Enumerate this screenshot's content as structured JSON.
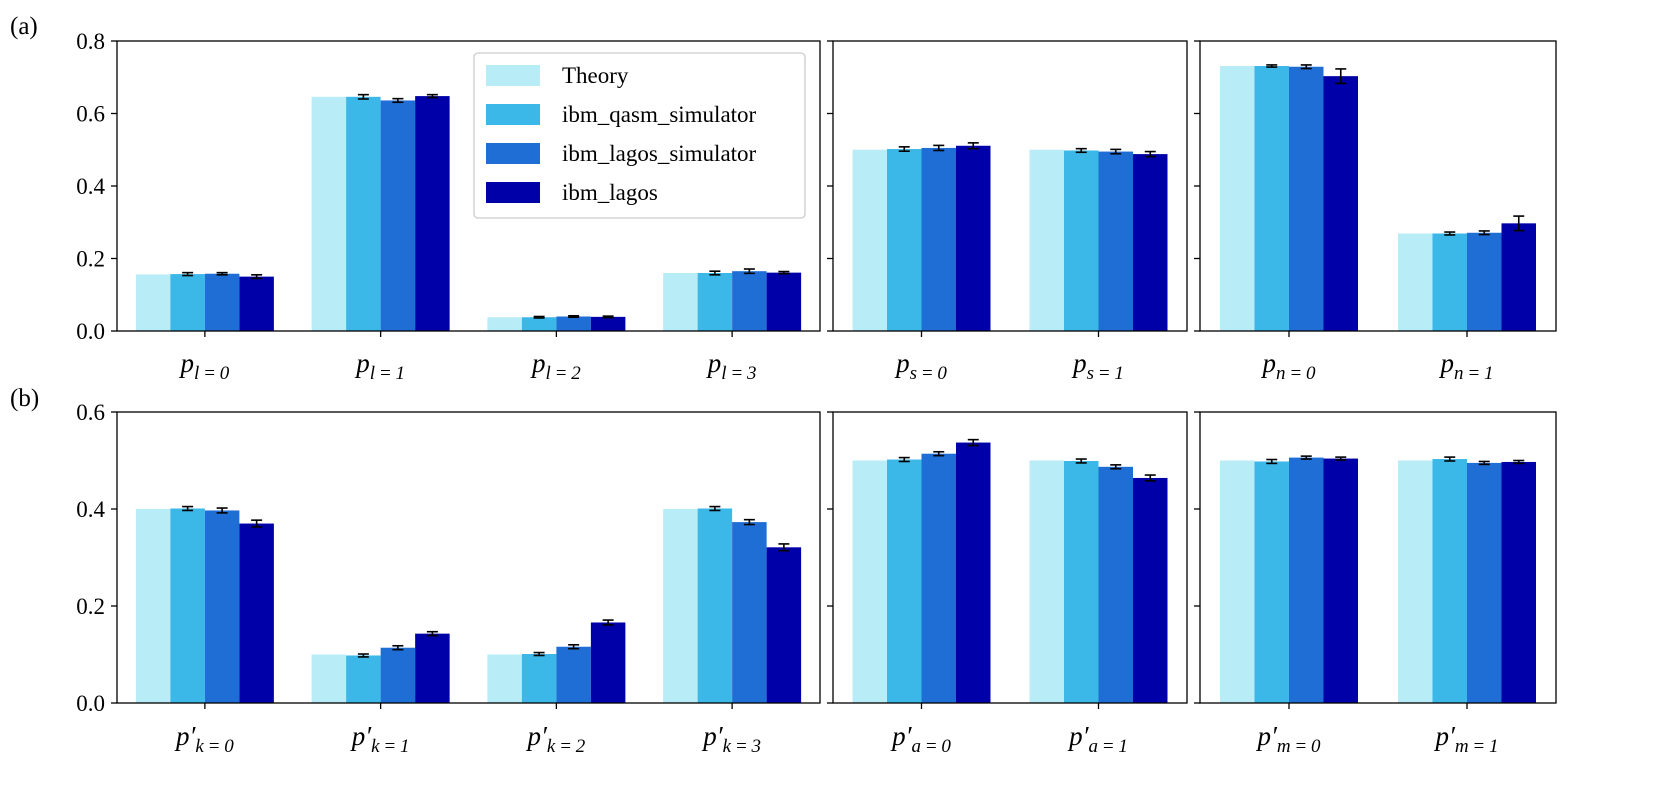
{
  "colors": {
    "series": [
      "#b8ecf7",
      "#3bb8e8",
      "#1f6ed6",
      "#0000a8"
    ],
    "error": "#000000",
    "axis": "#000000",
    "legend_border": "#cccccc"
  },
  "chart_data": {
    "type": "bar",
    "panel_labels": [
      "(a)",
      "(b)"
    ],
    "legend": {
      "placement": "top-center of first panel",
      "entries": [
        "Theory",
        "ibm_qasm_simulator",
        "ibm_lagos_simulator",
        "ibm_lagos"
      ]
    },
    "rows": [
      {
        "label": "(a)",
        "ylim": [
          0,
          0.8
        ],
        "yticks": [
          "0.0",
          "0.2",
          "0.4",
          "0.6",
          "0.8"
        ],
        "ytick_values": [
          0,
          0.2,
          0.4,
          0.6,
          0.8
        ],
        "subplots": [
          {
            "categories": [
              {
                "base": "p",
                "prime": "",
                "sub": "l = 0"
              },
              {
                "base": "p",
                "prime": "",
                "sub": "l = 1"
              },
              {
                "base": "p",
                "prime": "",
                "sub": "l = 2"
              },
              {
                "base": "p",
                "prime": "",
                "sub": "l = 3"
              }
            ],
            "series": [
              {
                "name": "Theory",
                "values": [
                  0.156,
                  0.646,
                  0.038,
                  0.16
                ],
                "errors": [
                  0,
                  0,
                  0,
                  0
                ]
              },
              {
                "name": "ibm_qasm_simulator",
                "values": [
                  0.157,
                  0.646,
                  0.038,
                  0.16
                ],
                "errors": [
                  0.004,
                  0.006,
                  0.002,
                  0.005
                ]
              },
              {
                "name": "ibm_lagos_simulator",
                "values": [
                  0.158,
                  0.636,
                  0.04,
                  0.165
                ],
                "errors": [
                  0.003,
                  0.005,
                  0.002,
                  0.006
                ]
              },
              {
                "name": "ibm_lagos",
                "values": [
                  0.15,
                  0.648,
                  0.039,
                  0.161
                ],
                "errors": [
                  0.005,
                  0.004,
                  0.002,
                  0.003
                ]
              }
            ]
          },
          {
            "categories": [
              {
                "base": "p",
                "prime": "",
                "sub": "s = 0"
              },
              {
                "base": "p",
                "prime": "",
                "sub": "s = 1"
              }
            ],
            "series": [
              {
                "name": "Theory",
                "values": [
                  0.5,
                  0.5
                ],
                "errors": [
                  0,
                  0
                ]
              },
              {
                "name": "ibm_qasm_simulator",
                "values": [
                  0.502,
                  0.498
                ],
                "errors": [
                  0.006,
                  0.005
                ]
              },
              {
                "name": "ibm_lagos_simulator",
                "values": [
                  0.505,
                  0.495
                ],
                "errors": [
                  0.007,
                  0.006
                ]
              },
              {
                "name": "ibm_lagos",
                "values": [
                  0.511,
                  0.488
                ],
                "errors": [
                  0.008,
                  0.007
                ]
              }
            ]
          },
          {
            "categories": [
              {
                "base": "p",
                "prime": "",
                "sub": "n = 0"
              },
              {
                "base": "p",
                "prime": "",
                "sub": "n = 1"
              }
            ],
            "series": [
              {
                "name": "Theory",
                "values": [
                  0.731,
                  0.269
                ],
                "errors": [
                  0,
                  0
                ]
              },
              {
                "name": "ibm_qasm_simulator",
                "values": [
                  0.731,
                  0.269
                ],
                "errors": [
                  0.003,
                  0.004
                ]
              },
              {
                "name": "ibm_lagos_simulator",
                "values": [
                  0.729,
                  0.271
                ],
                "errors": [
                  0.005,
                  0.005
                ]
              },
              {
                "name": "ibm_lagos",
                "values": [
                  0.703,
                  0.297
                ],
                "errors": [
                  0.02,
                  0.02
                ]
              }
            ]
          }
        ]
      },
      {
        "label": "(b)",
        "ylim": [
          0,
          0.6
        ],
        "yticks": [
          "0.0",
          "0.2",
          "0.4",
          "0.6"
        ],
        "ytick_values": [
          0,
          0.2,
          0.4,
          0.6
        ],
        "subplots": [
          {
            "categories": [
              {
                "base": "p",
                "prime": "′",
                "sub": "k = 0"
              },
              {
                "base": "p",
                "prime": "′",
                "sub": "k = 1"
              },
              {
                "base": "p",
                "prime": "′",
                "sub": "k = 2"
              },
              {
                "base": "p",
                "prime": "′",
                "sub": "k = 3"
              }
            ],
            "series": [
              {
                "name": "Theory",
                "values": [
                  0.4,
                  0.1,
                  0.1,
                  0.4
                ],
                "errors": [
                  0,
                  0,
                  0,
                  0
                ]
              },
              {
                "name": "ibm_qasm_simulator",
                "values": [
                  0.401,
                  0.098,
                  0.101,
                  0.401
                ],
                "errors": [
                  0.004,
                  0.003,
                  0.003,
                  0.004
                ]
              },
              {
                "name": "ibm_lagos_simulator",
                "values": [
                  0.397,
                  0.114,
                  0.116,
                  0.373
                ],
                "errors": [
                  0.005,
                  0.004,
                  0.004,
                  0.005
                ]
              },
              {
                "name": "ibm_lagos",
                "values": [
                  0.37,
                  0.143,
                  0.166,
                  0.321
                ],
                "errors": [
                  0.007,
                  0.004,
                  0.005,
                  0.007
                ]
              }
            ]
          },
          {
            "categories": [
              {
                "base": "p",
                "prime": "′",
                "sub": "a = 0"
              },
              {
                "base": "p",
                "prime": "′",
                "sub": "a = 1"
              }
            ],
            "series": [
              {
                "name": "Theory",
                "values": [
                  0.5,
                  0.5
                ],
                "errors": [
                  0,
                  0
                ]
              },
              {
                "name": "ibm_qasm_simulator",
                "values": [
                  0.502,
                  0.499
                ],
                "errors": [
                  0.004,
                  0.004
                ]
              },
              {
                "name": "ibm_lagos_simulator",
                "values": [
                  0.514,
                  0.487
                ],
                "errors": [
                  0.004,
                  0.004
                ]
              },
              {
                "name": "ibm_lagos",
                "values": [
                  0.537,
                  0.464
                ],
                "errors": [
                  0.006,
                  0.006
                ]
              }
            ]
          },
          {
            "categories": [
              {
                "base": "p",
                "prime": "′",
                "sub": "m = 0"
              },
              {
                "base": "p",
                "prime": "′",
                "sub": "m = 1"
              }
            ],
            "series": [
              {
                "name": "Theory",
                "values": [
                  0.5,
                  0.5
                ],
                "errors": [
                  0,
                  0
                ]
              },
              {
                "name": "ibm_qasm_simulator",
                "values": [
                  0.498,
                  0.503
                ],
                "errors": [
                  0.004,
                  0.004
                ]
              },
              {
                "name": "ibm_lagos_simulator",
                "values": [
                  0.506,
                  0.495
                ],
                "errors": [
                  0.003,
                  0.003
                ]
              },
              {
                "name": "ibm_lagos",
                "values": [
                  0.504,
                  0.497
                ],
                "errors": [
                  0.003,
                  0.003
                ]
              }
            ]
          }
        ]
      }
    ]
  }
}
